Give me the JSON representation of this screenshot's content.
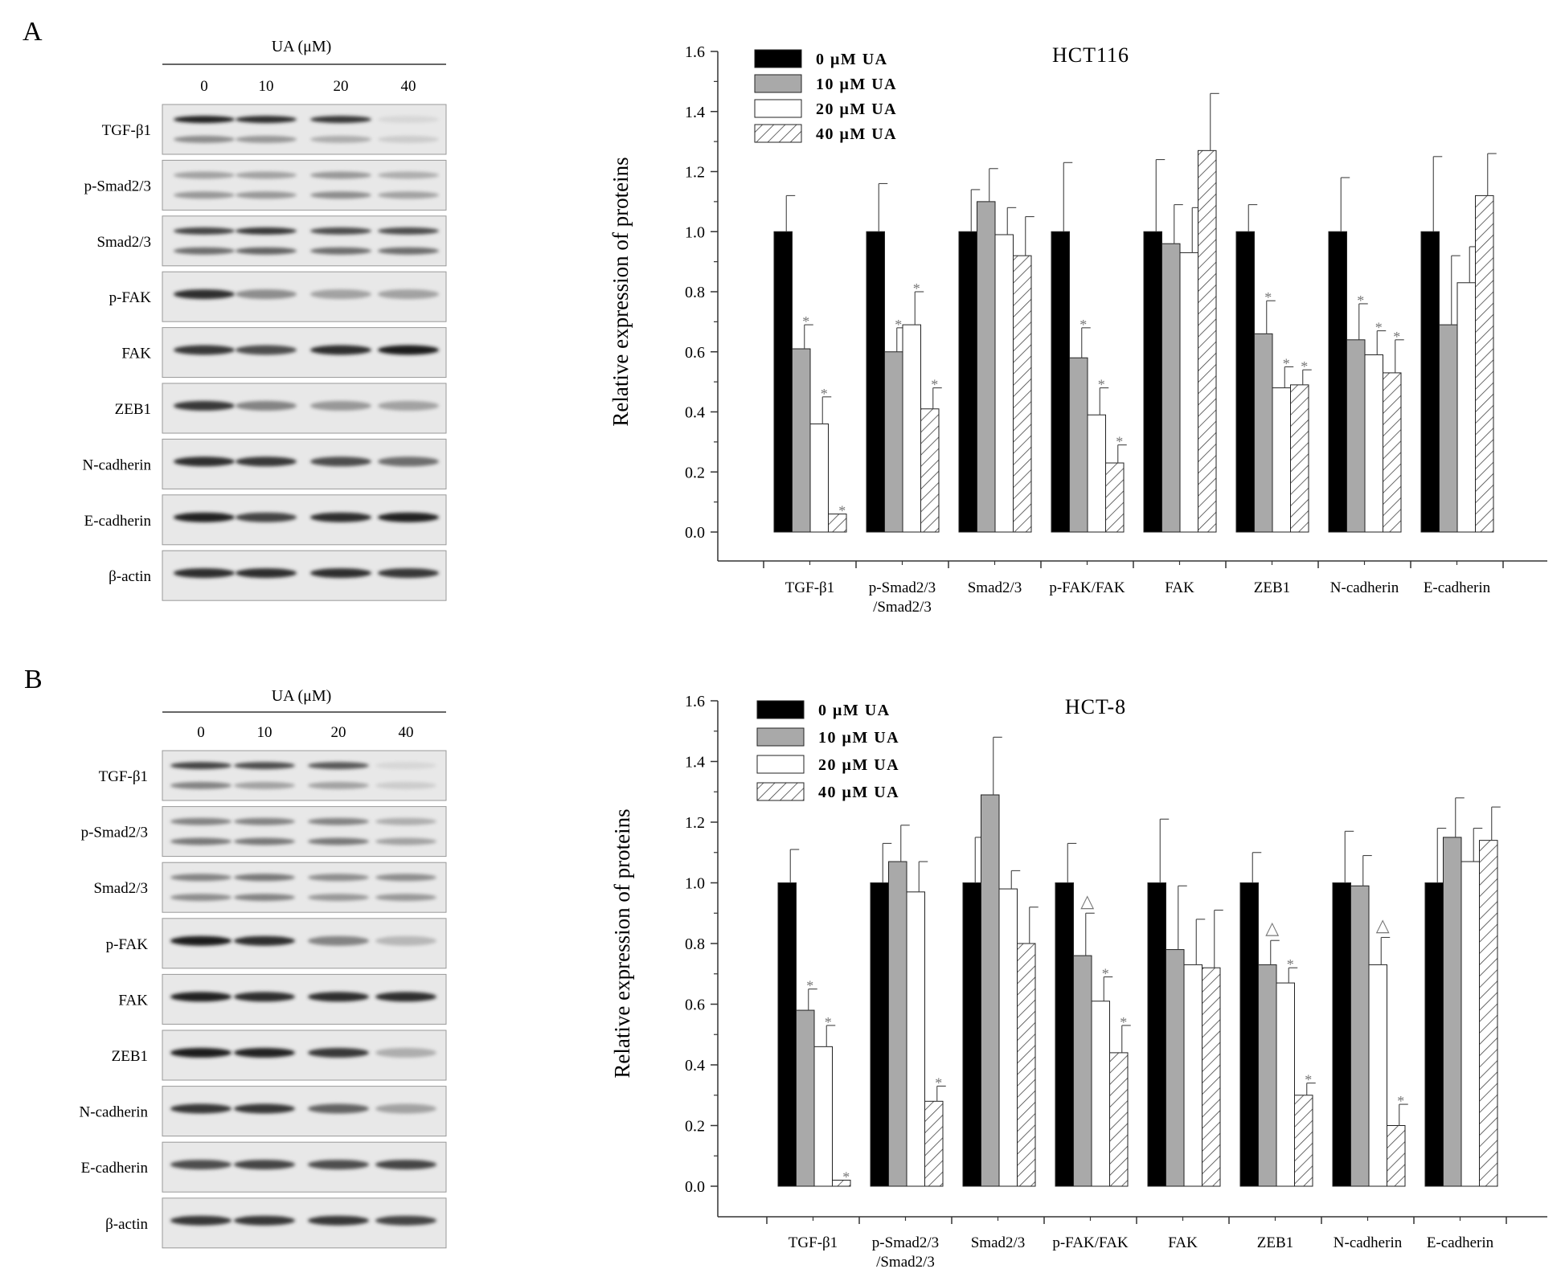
{
  "panels": [
    {
      "letter": "A",
      "blot": {
        "treatment_label": "UA (μM)",
        "lanes": [
          "0",
          "10",
          "20",
          "40"
        ],
        "rows": [
          {
            "label": "TGF-β1",
            "bands": [
              [
                0.9,
                0.4
              ],
              [
                0.85,
                0.35
              ],
              [
                0.8,
                0.25
              ],
              [
                0.05,
                0.1
              ]
            ]
          },
          {
            "label": "p-Smad2/3",
            "bands": [
              [
                0.3,
                0.35
              ],
              [
                0.3,
                0.35
              ],
              [
                0.35,
                0.4
              ],
              [
                0.25,
                0.3
              ]
            ]
          },
          {
            "label": "Smad2/3",
            "bands": [
              [
                0.75,
                0.55
              ],
              [
                0.8,
                0.6
              ],
              [
                0.7,
                0.55
              ],
              [
                0.7,
                0.55
              ]
            ]
          },
          {
            "label": "p-FAK",
            "bands": [
              [
                0.85
              ],
              [
                0.4
              ],
              [
                0.3
              ],
              [
                0.3
              ]
            ]
          },
          {
            "label": "FAK",
            "bands": [
              [
                0.8
              ],
              [
                0.7
              ],
              [
                0.85
              ],
              [
                0.95
              ]
            ]
          },
          {
            "label": "ZEB1",
            "bands": [
              [
                0.8
              ],
              [
                0.45
              ],
              [
                0.35
              ],
              [
                0.3
              ]
            ]
          },
          {
            "label": "N-cadherin",
            "bands": [
              [
                0.85
              ],
              [
                0.8
              ],
              [
                0.7
              ],
              [
                0.55
              ]
            ]
          },
          {
            "label": "E-cadherin",
            "bands": [
              [
                0.9
              ],
              [
                0.75
              ],
              [
                0.85
              ],
              [
                0.9
              ]
            ]
          },
          {
            "label": "β-actin",
            "bands": [
              [
                0.85
              ],
              [
                0.85
              ],
              [
                0.85
              ],
              [
                0.8
              ]
            ]
          }
        ]
      }
    },
    {
      "letter": "B",
      "blot": {
        "treatment_label": "UA (μM)",
        "lanes": [
          "0",
          "10",
          "20",
          "40"
        ],
        "rows": [
          {
            "label": "TGF-β1",
            "bands": [
              [
                0.75,
                0.45
              ],
              [
                0.7,
                0.3
              ],
              [
                0.65,
                0.3
              ],
              [
                0.05,
                0.1
              ]
            ]
          },
          {
            "label": "p-Smad2/3",
            "bands": [
              [
                0.45,
                0.5
              ],
              [
                0.45,
                0.5
              ],
              [
                0.45,
                0.5
              ],
              [
                0.25,
                0.3
              ]
            ]
          },
          {
            "label": "Smad2/3",
            "bands": [
              [
                0.45,
                0.4
              ],
              [
                0.5,
                0.45
              ],
              [
                0.4,
                0.35
              ],
              [
                0.4,
                0.35
              ]
            ]
          },
          {
            "label": "p-FAK",
            "bands": [
              [
                0.95
              ],
              [
                0.85
              ],
              [
                0.45
              ],
              [
                0.2
              ]
            ]
          },
          {
            "label": "FAK",
            "bands": [
              [
                0.9
              ],
              [
                0.85
              ],
              [
                0.85
              ],
              [
                0.85
              ]
            ]
          },
          {
            "label": "ZEB1",
            "bands": [
              [
                0.95
              ],
              [
                0.9
              ],
              [
                0.8
              ],
              [
                0.25
              ]
            ]
          },
          {
            "label": "N-cadherin",
            "bands": [
              [
                0.8
              ],
              [
                0.8
              ],
              [
                0.6
              ],
              [
                0.3
              ]
            ]
          },
          {
            "label": "E-cadherin",
            "bands": [
              [
                0.7
              ],
              [
                0.75
              ],
              [
                0.7
              ],
              [
                0.75
              ]
            ]
          },
          {
            "label": "β-actin",
            "bands": [
              [
                0.8
              ],
              [
                0.8
              ],
              [
                0.8
              ],
              [
                0.75
              ]
            ]
          }
        ]
      }
    }
  ],
  "chart_data": [
    {
      "type": "bar",
      "title": "HCT116",
      "ylabel": "Relative expression of proteins",
      "xlabel": "",
      "ylim": [
        0,
        1.6
      ],
      "yticks": [
        "0.0",
        "0.2",
        "0.4",
        "0.6",
        "0.8",
        "1.0",
        "1.2",
        "1.4",
        "1.6"
      ],
      "legend_position": "top-left",
      "grid": false,
      "categories": [
        "TGF-β1",
        "p-Smad2/3\n/Smad2/3",
        "Smad2/3",
        "p-FAK/FAK",
        "FAK",
        "ZEB1",
        "N-cadherin",
        "E-cadherin"
      ],
      "series": [
        {
          "name": "0 μM UA",
          "fill": "black",
          "values": [
            1.0,
            1.0,
            1.0,
            1.0,
            1.0,
            1.0,
            1.0,
            1.0
          ],
          "errors": [
            0.12,
            0.16,
            0.14,
            0.23,
            0.24,
            0.09,
            0.18,
            0.25
          ],
          "marks": [
            "",
            "",
            "",
            "",
            "",
            "",
            "",
            ""
          ]
        },
        {
          "name": "10 μM UA",
          "fill": "gray",
          "values": [
            0.61,
            0.6,
            1.1,
            0.58,
            0.96,
            0.66,
            0.64,
            0.69
          ],
          "errors": [
            0.08,
            0.08,
            0.11,
            0.1,
            0.13,
            0.11,
            0.12,
            0.23
          ],
          "marks": [
            "*",
            "*",
            "",
            "*",
            "",
            "*",
            "*",
            ""
          ]
        },
        {
          "name": "20 μM UA",
          "fill": "white",
          "values": [
            0.36,
            0.69,
            0.99,
            0.39,
            0.93,
            0.48,
            0.59,
            0.83
          ],
          "errors": [
            0.09,
            0.11,
            0.09,
            0.09,
            0.15,
            0.07,
            0.08,
            0.12
          ],
          "marks": [
            "*",
            "*",
            "",
            "*",
            "",
            "*",
            "*",
            ""
          ]
        },
        {
          "name": "40 μM UA",
          "fill": "hatch",
          "values": [
            0.06,
            0.41,
            0.92,
            0.23,
            1.27,
            0.49,
            0.53,
            1.12
          ],
          "errors": [
            0.0,
            0.07,
            0.13,
            0.06,
            0.19,
            0.05,
            0.11,
            0.14
          ],
          "marks": [
            "*",
            "*",
            "",
            "*",
            "",
            "*",
            "*",
            ""
          ]
        }
      ]
    },
    {
      "type": "bar",
      "title": "HCT-8",
      "ylabel": "Relative expression of proteins",
      "xlabel": "",
      "ylim": [
        0,
        1.6
      ],
      "yticks": [
        "0.0",
        "0.2",
        "0.4",
        "0.6",
        "0.8",
        "1.0",
        "1.2",
        "1.4",
        "1.6"
      ],
      "legend_position": "top-left",
      "grid": false,
      "categories": [
        "TGF-β1",
        "p-Smad2/3\n/Smad2/3",
        "Smad2/3",
        "p-FAK/FAK",
        "FAK",
        "ZEB1",
        "N-cadherin",
        "E-cadherin"
      ],
      "series": [
        {
          "name": "0 μM UA",
          "fill": "black",
          "values": [
            1.0,
            1.0,
            1.0,
            1.0,
            1.0,
            1.0,
            1.0,
            1.0
          ],
          "errors": [
            0.11,
            0.13,
            0.15,
            0.13,
            0.21,
            0.1,
            0.17,
            0.18
          ],
          "marks": [
            "",
            "",
            "",
            "",
            "",
            "",
            "",
            ""
          ]
        },
        {
          "name": "10 μM UA",
          "fill": "gray",
          "values": [
            0.58,
            1.07,
            1.29,
            0.76,
            0.78,
            0.73,
            0.99,
            1.15
          ],
          "errors": [
            0.07,
            0.12,
            0.19,
            0.14,
            0.21,
            0.08,
            0.1,
            0.13
          ],
          "marks": [
            "*",
            "",
            "",
            "△",
            "",
            "△",
            "",
            ""
          ]
        },
        {
          "name": "20 μM UA",
          "fill": "white",
          "values": [
            0.46,
            0.97,
            0.98,
            0.61,
            0.73,
            0.67,
            0.73,
            1.07
          ],
          "errors": [
            0.07,
            0.1,
            0.06,
            0.08,
            0.15,
            0.05,
            0.09,
            0.11
          ],
          "marks": [
            "*",
            "",
            "",
            "*",
            "",
            "*",
            "△",
            ""
          ]
        },
        {
          "name": "40 μM UA",
          "fill": "hatch",
          "values": [
            0.02,
            0.28,
            0.8,
            0.44,
            0.72,
            0.3,
            0.2,
            1.14
          ],
          "errors": [
            0.0,
            0.05,
            0.12,
            0.09,
            0.19,
            0.04,
            0.07,
            0.11
          ],
          "marks": [
            "*",
            "*",
            "",
            "*",
            "",
            "*",
            "*",
            ""
          ]
        }
      ]
    }
  ]
}
